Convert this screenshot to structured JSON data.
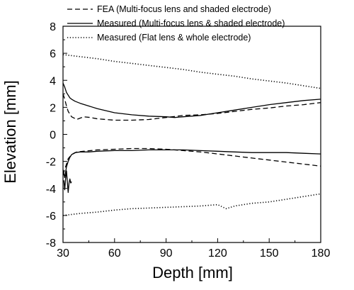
{
  "chart_data": {
    "type": "line",
    "xlabel": "Depth [mm]",
    "ylabel": "Elevation [mm]",
    "xlim": [
      30,
      180
    ],
    "ylim": [
      -8,
      8
    ],
    "xticks": [
      30,
      60,
      90,
      120,
      150,
      180
    ],
    "yticks": [
      -8,
      -6,
      -4,
      -2,
      0,
      2,
      4,
      6,
      8
    ],
    "grid": false,
    "legend_position": "top",
    "series": [
      {
        "name": "FEA (Multi-focus lens and shaded electrode)",
        "style": "dashed",
        "color": "#000000",
        "segments": [
          {
            "x": [
              30,
              31,
              32,
              33,
              35,
              38,
              42,
              46,
              50,
              60,
              70,
              80,
              90,
              100,
              110,
              120,
              130,
              140,
              150,
              160,
              170,
              180
            ],
            "y": [
              3.0,
              2.6,
              2.1,
              1.7,
              1.3,
              1.1,
              1.3,
              1.25,
              1.15,
              1.05,
              1.05,
              1.1,
              1.25,
              1.4,
              1.45,
              1.55,
              1.7,
              1.85,
              1.95,
              2.1,
              2.2,
              2.35
            ]
          },
          {
            "x": [
              30,
              31,
              32,
              33,
              35,
              38,
              42,
              46,
              50,
              60,
              70,
              80,
              90,
              100,
              110,
              120,
              130,
              140,
              150,
              160,
              170,
              180
            ],
            "y": [
              -3.0,
              -2.6,
              -2.2,
              -1.8,
              -1.5,
              -1.3,
              -1.25,
              -1.2,
              -1.15,
              -1.1,
              -1.05,
              -1.05,
              -1.1,
              -1.2,
              -1.3,
              -1.45,
              -1.6,
              -1.75,
              -1.9,
              -2.05,
              -2.2,
              -2.35
            ]
          }
        ]
      },
      {
        "name": "Measured (Multi-focus lens & shaded electrode)",
        "style": "solid",
        "color": "#000000",
        "segments": [
          {
            "x": [
              30,
              31,
              32,
              33,
              34,
              35,
              37,
              40,
              45,
              50,
              60,
              70,
              80,
              90,
              95,
              100,
              110,
              120,
              130,
              140,
              150,
              160,
              170,
              180
            ],
            "y": [
              3.8,
              3.5,
              3.1,
              2.9,
              2.7,
              2.6,
              2.45,
              2.3,
              2.1,
              1.9,
              1.6,
              1.45,
              1.35,
              1.3,
              1.25,
              1.3,
              1.4,
              1.6,
              1.8,
              2.0,
              2.2,
              2.35,
              2.5,
              2.6
            ]
          },
          {
            "x": [
              30,
              31,
              32,
              33,
              34,
              35,
              37,
              40,
              45,
              50,
              60,
              70,
              80,
              90,
              100,
              110,
              120,
              130,
              140,
              150,
              160,
              170,
              180
            ],
            "y": [
              -2.6,
              -3.2,
              -2.4,
              -2.0,
              -1.7,
              -1.5,
              -1.35,
              -1.3,
              -1.3,
              -1.25,
              -1.2,
              -1.2,
              -1.15,
              -1.15,
              -1.15,
              -1.2,
              -1.25,
              -1.3,
              -1.35,
              -1.35,
              -1.35,
              -1.4,
              -1.45
            ]
          },
          {
            "x": [
              30.5,
              31,
              31.5,
              32,
              32.5,
              33,
              33.5,
              34,
              34.5,
              35
            ],
            "y": [
              -3.4,
              -4.1,
              -3.3,
              -2.7,
              -3.5,
              -4.3,
              -3.6,
              -3.3,
              -3.6,
              -3.5
            ]
          }
        ]
      },
      {
        "name": "Measured (Flat lens & whole electrode)",
        "style": "dotted",
        "color": "#000000",
        "segments": [
          {
            "x": [
              30,
              40,
              50,
              60,
              70,
              80,
              90,
              100,
              110,
              120,
              130,
              140,
              150,
              160,
              170,
              180
            ],
            "y": [
              5.9,
              5.75,
              5.6,
              5.4,
              5.25,
              5.1,
              4.95,
              4.8,
              4.6,
              4.45,
              4.3,
              4.1,
              3.95,
              3.8,
              3.6,
              3.4
            ]
          },
          {
            "x": [
              30,
              40,
              50,
              60,
              70,
              80,
              90,
              100,
              110,
              120,
              125,
              130,
              140,
              150,
              160,
              170,
              180
            ],
            "y": [
              -6.0,
              -5.85,
              -5.75,
              -5.6,
              -5.5,
              -5.45,
              -5.4,
              -5.35,
              -5.3,
              -5.2,
              -5.5,
              -5.3,
              -5.1,
              -5.0,
              -4.8,
              -4.6,
              -4.4
            ]
          }
        ]
      }
    ]
  }
}
